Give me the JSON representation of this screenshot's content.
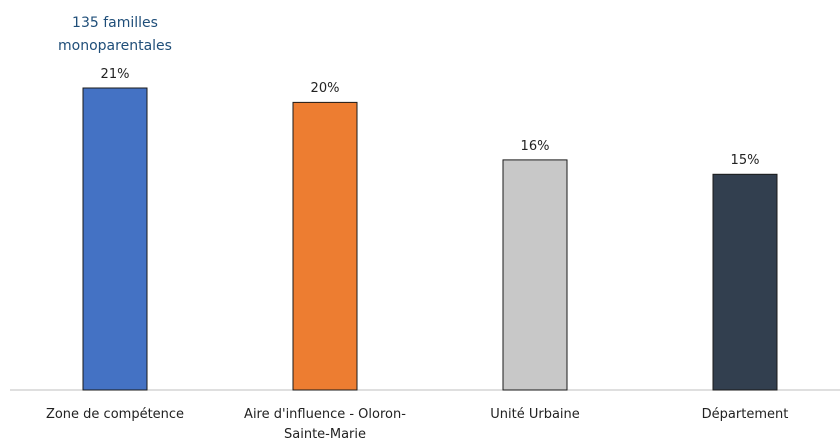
{
  "chart_data": {
    "type": "bar",
    "annotation": "135 familles monoparentales",
    "categories": [
      "Zone de compétence",
      "Aire d'influence - Oloron-Sainte-Marie",
      "Unité Urbaine",
      "Département"
    ],
    "values": [
      21,
      20,
      16,
      15
    ],
    "value_labels": [
      "21%",
      "20%",
      "16%",
      "15%"
    ],
    "colors": [
      "#4472c4",
      "#ed7d31",
      "#c8c8c8",
      "#323f4f"
    ]
  }
}
